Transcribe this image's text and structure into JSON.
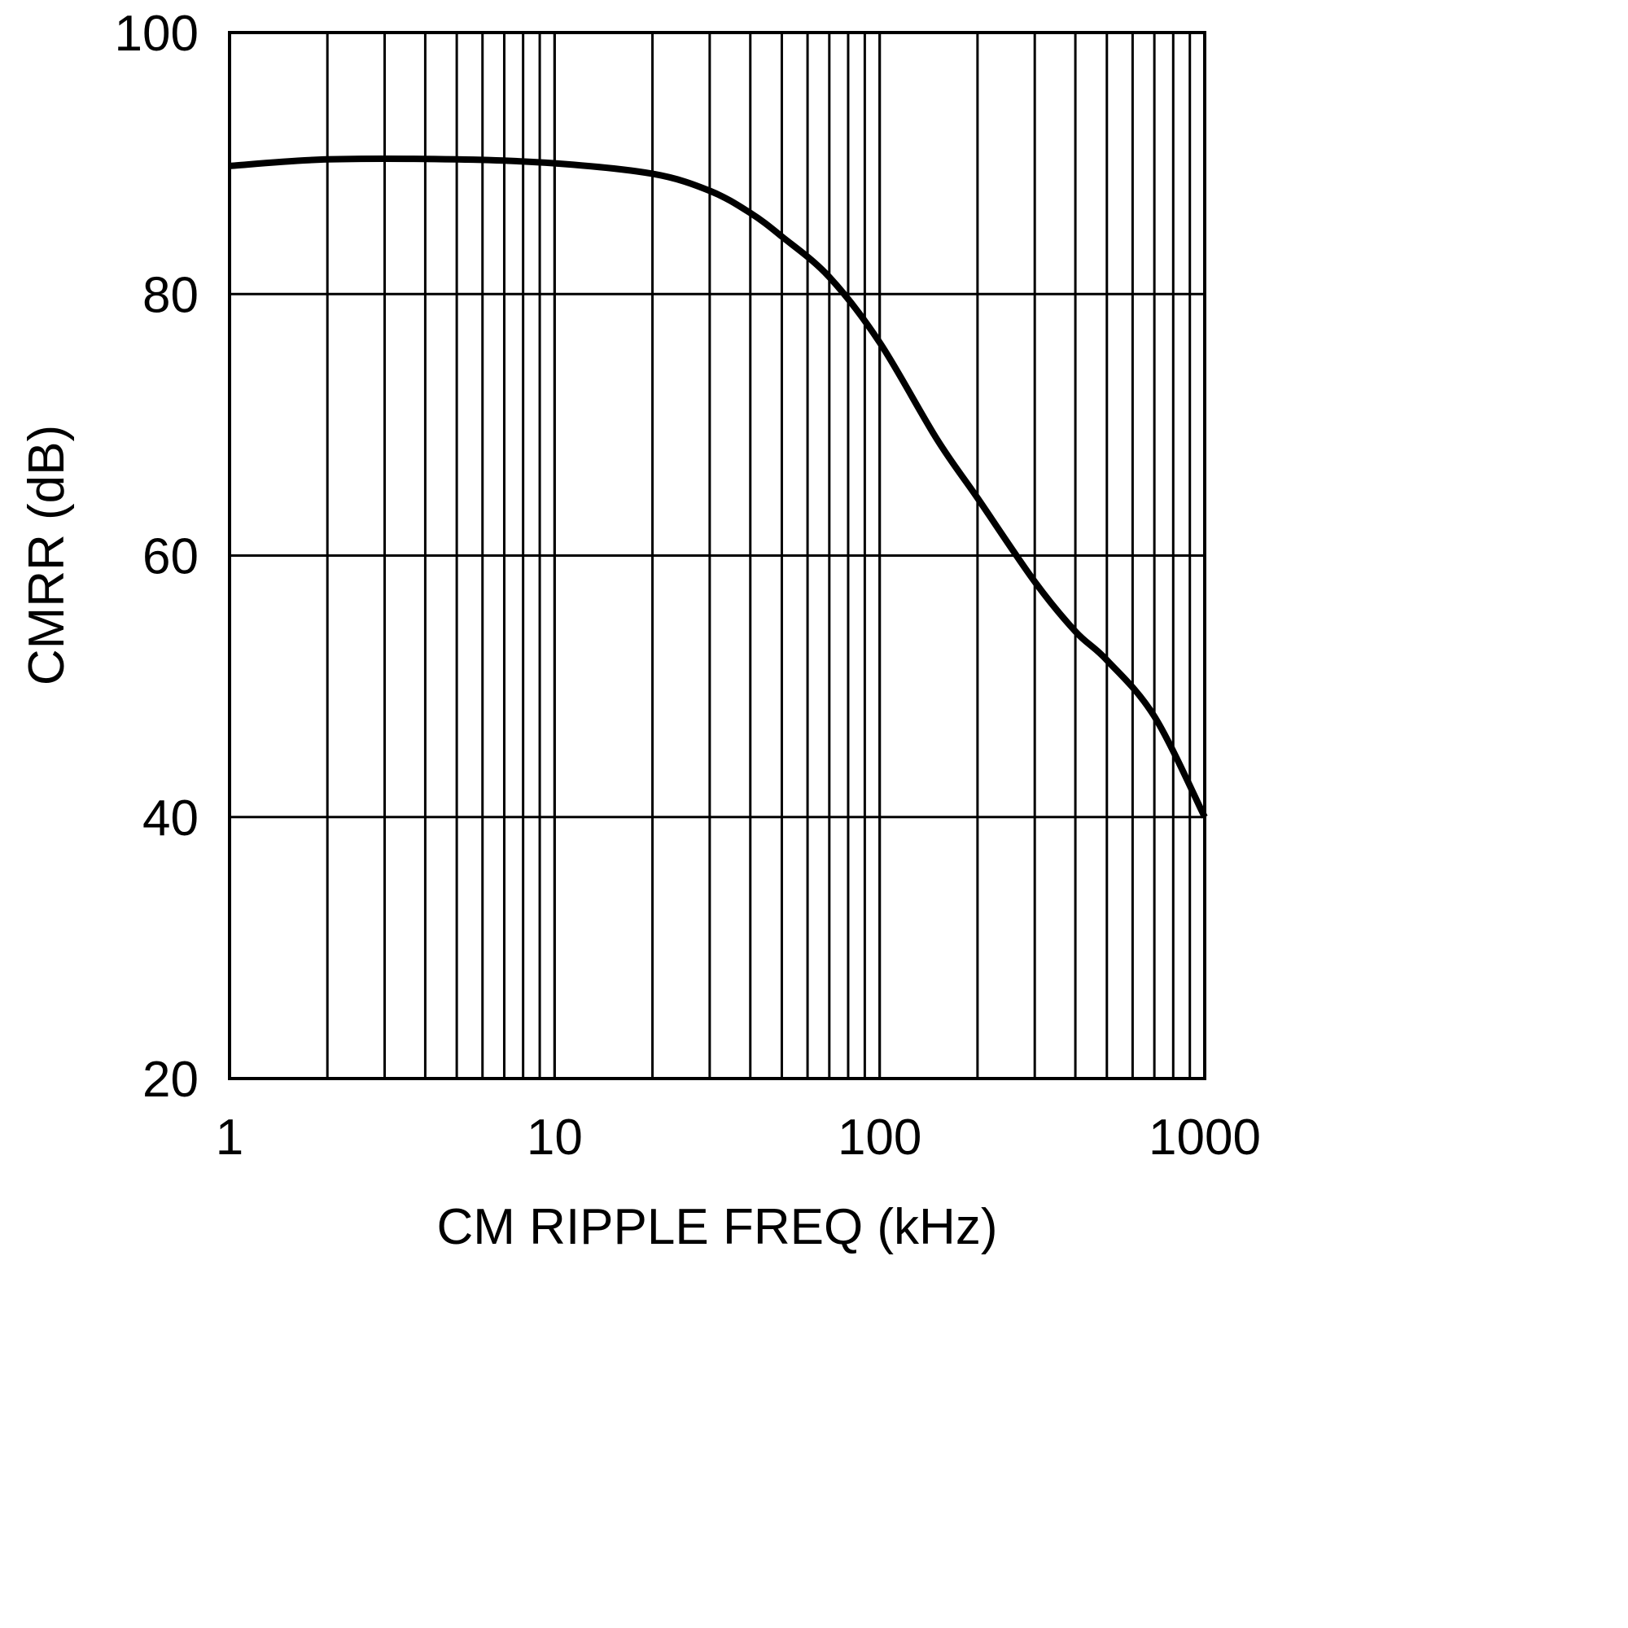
{
  "chart_data": {
    "type": "line",
    "title": "",
    "xlabel": "CM RIPPLE FREQ (kHz)",
    "ylabel": "CMRR (dB)",
    "xscale": "log",
    "xlim": [
      1,
      1000
    ],
    "ylim": [
      20,
      100
    ],
    "grid": true,
    "xticks": [
      1,
      10,
      100,
      1000
    ],
    "xtick_labels": [
      "1",
      "10",
      "100",
      "1000"
    ],
    "yticks": [
      20,
      40,
      60,
      80,
      100
    ],
    "ytick_labels": [
      "20",
      "40",
      "60",
      "80",
      "100"
    ],
    "series": [
      {
        "name": "CMRR",
        "color": "#000000",
        "x": [
          1,
          2,
          5,
          10,
          20,
          30,
          40,
          50,
          70,
          100,
          150,
          200,
          300,
          400,
          500,
          700,
          1000
        ],
        "y": [
          89.8,
          90.3,
          90.3,
          90.0,
          89.2,
          87.9,
          86.2,
          84.4,
          81.3,
          76.3,
          68.9,
          64.4,
          58.0,
          54.2,
          52.0,
          47.7,
          40.0
        ]
      }
    ]
  }
}
